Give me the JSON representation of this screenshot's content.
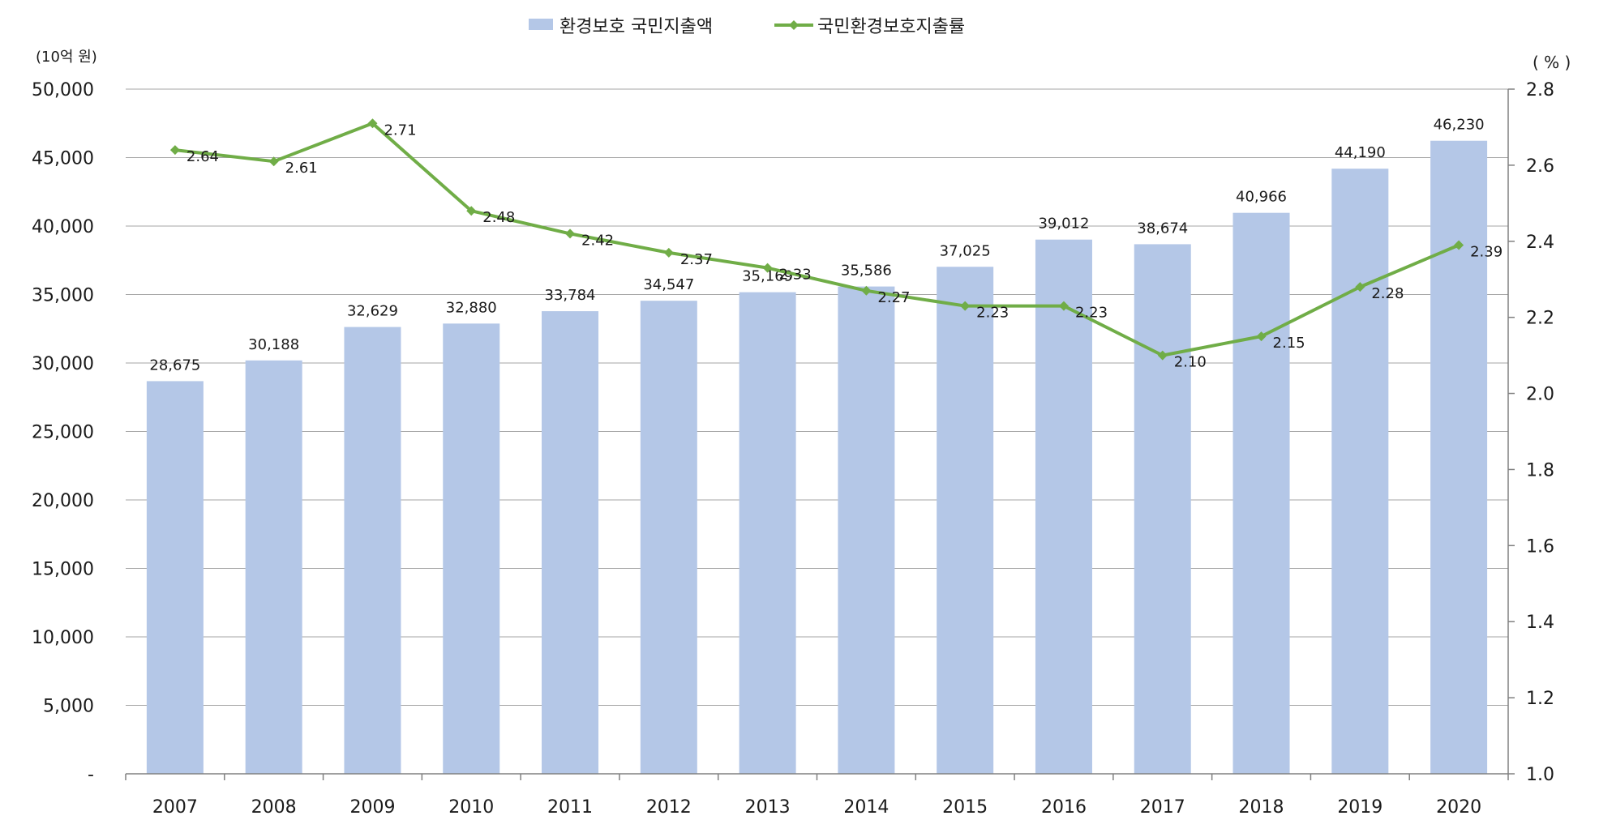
{
  "chart_data": {
    "type": "bar",
    "categories": [
      "2007",
      "2008",
      "2009",
      "2010",
      "2011",
      "2012",
      "2013",
      "2014",
      "2015",
      "2016",
      "2017",
      "2018",
      "2019",
      "2020"
    ],
    "series": [
      {
        "name": "환경보호 국민지출액",
        "type": "bar",
        "axis": "left",
        "color": "#b4c7e7",
        "values": [
          28675,
          30188,
          32629,
          32880,
          33784,
          34547,
          35169,
          35586,
          37025,
          39012,
          38674,
          40966,
          44190,
          46230
        ],
        "labels": [
          "28,675",
          "30,188",
          "32,629",
          "32,880",
          "33,784",
          "34,547",
          "35,169",
          "35,586",
          "37,025",
          "39,012",
          "38,674",
          "40,966",
          "44,190",
          "46,230"
        ]
      },
      {
        "name": "국민환경보호지출률",
        "type": "line",
        "axis": "right",
        "color": "#70ad47",
        "marker": "diamond",
        "values": [
          2.64,
          2.61,
          2.71,
          2.48,
          2.42,
          2.37,
          2.33,
          2.27,
          2.23,
          2.23,
          2.1,
          2.15,
          2.28,
          2.39
        ],
        "labels": [
          "2.64",
          "2.61",
          "2.71",
          "2.48",
          "2.42",
          "2.37",
          "2.33",
          "2.27",
          "2.23",
          "2.23",
          "2.10",
          "2.15",
          "2.28",
          "2.39"
        ]
      }
    ],
    "y_left": {
      "unit_label": "(10억 원)",
      "range": [
        0,
        50000
      ],
      "ticks": [
        0,
        5000,
        10000,
        15000,
        20000,
        25000,
        30000,
        35000,
        40000,
        45000,
        50000
      ],
      "tick_labels": [
        "-",
        "5,000",
        "10,000",
        "15,000",
        "20,000",
        "25,000",
        "30,000",
        "35,000",
        "40,000",
        "45,000",
        "50,000"
      ]
    },
    "y_right": {
      "unit_label": "( % )",
      "range": [
        1.0,
        2.8
      ],
      "ticks": [
        1.0,
        1.2,
        1.4,
        1.6,
        1.8,
        2.0,
        2.2,
        2.4,
        2.6,
        2.8
      ],
      "tick_labels": [
        "1.0",
        "1.2",
        "1.4",
        "1.6",
        "1.8",
        "2.0",
        "2.2",
        "2.4",
        "2.6",
        "2.8"
      ]
    },
    "grid": "horizontal",
    "legend_position": "top-center",
    "gridline_color": "#a6a6a6",
    "axis_color": "#808080"
  }
}
